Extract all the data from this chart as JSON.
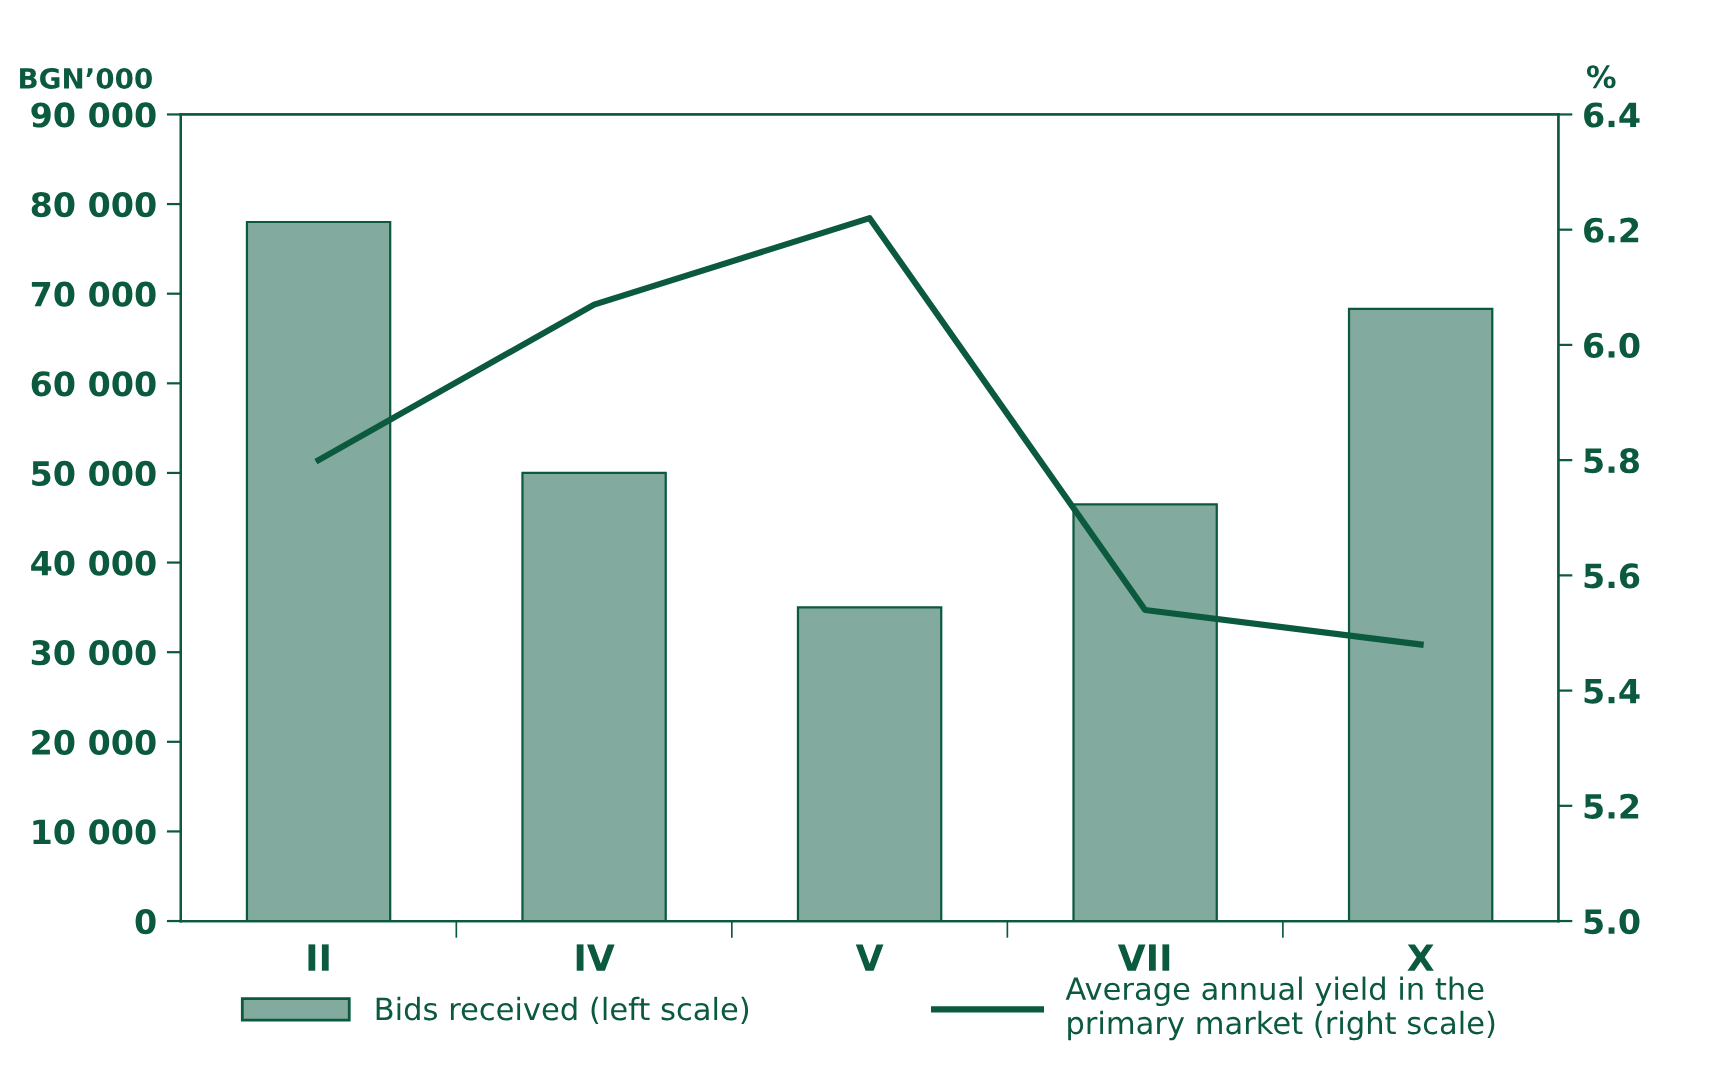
{
  "chart_data": {
    "type": "bar",
    "categories": [
      "II",
      "IV",
      "V",
      "VII",
      "X"
    ],
    "ylabel": "BGN’000",
    "y2label": "%",
    "series": [
      {
        "name": "Bids received (left scale)",
        "color": "#82aa9e",
        "values": [
          78000,
          50000,
          35000,
          46500,
          68300
        ]
      },
      {
        "name": "Average annual yield in the\nprimary market (right scale)",
        "type": "line",
        "axis": "y2",
        "color": "#0b5a3e",
        "values": [
          5.8,
          6.07,
          6.22,
          5.54,
          5.48
        ]
      }
    ],
    "ylim": [
      0,
      90000
    ],
    "yticks": [
      0,
      {
        "value": 10000,
        "label": "10 000"
      },
      {
        "value": 20000,
        "label": "20 000"
      },
      {
        "value": 30000,
        "label": "30 000"
      },
      {
        "value": 40000,
        "label": "40 000"
      },
      {
        "value": 50000,
        "label": "50 000"
      },
      {
        "value": 60000,
        "label": "60 000"
      },
      {
        "value": 70000,
        "label": "70 000"
      },
      {
        "value": 80000,
        "label": "80 000"
      },
      {
        "value": 90000,
        "label": "90 000"
      }
    ],
    "y2lim": [
      5.0,
      6.4
    ],
    "y2ticks": [
      {
        "value": 5.0,
        "label": "5.0"
      },
      5.2,
      5.4,
      5.6,
      5.8,
      {
        "value": 6.0,
        "label": "6.0"
      },
      6.2,
      6.4
    ],
    "grid": false,
    "legend": "bottom",
    "marker": "none",
    "line_style": "solid"
  }
}
